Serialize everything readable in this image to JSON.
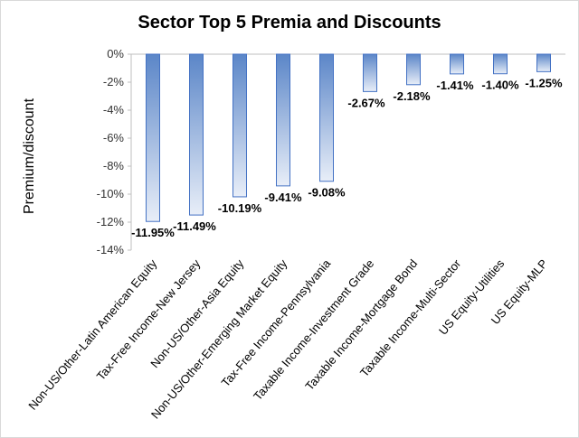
{
  "chart_data": {
    "type": "bar",
    "title": "Sector Top 5 Premia and Discounts",
    "ylabel": "Premium/discount",
    "xlabel": "",
    "categories": [
      "Non-US/Other-Latin American Equity",
      "Tax-Free Income-New Jersey",
      "Non-US/Other-Asia Equity",
      "Non-US/Other-Emerging Market Equity",
      "Tax-Free Income-Pennsylvania",
      "Taxable Income-Investment Grade",
      "Taxable Income-Mortgage Bond",
      "Taxable Income-Multi-Sector",
      "US Equity-Utilities",
      "US Equity-MLP"
    ],
    "values": [
      -11.95,
      -11.49,
      -10.19,
      -9.41,
      -9.08,
      -2.67,
      -2.18,
      -1.41,
      -1.4,
      -1.25
    ],
    "data_labels": [
      "-11.95%",
      "-11.49%",
      "-10.19%",
      "-9.41%",
      "-9.08%",
      "-2.67%",
      "-2.18%",
      "-1.41%",
      "-1.40%",
      "-1.25%"
    ],
    "ylim": [
      -14,
      0
    ],
    "yticks": [
      0,
      -2,
      -4,
      -6,
      -8,
      -10,
      -12,
      -14
    ],
    "ytick_labels": [
      "0%",
      "-2%",
      "-4%",
      "-6%",
      "-8%",
      "-10%",
      "-12%",
      "-14%"
    ],
    "grid": false,
    "legend": "none",
    "colors": {
      "bar_top": "#5b86c8",
      "bar_bottom": "#e8eef8",
      "bar_edge": "#4472c4"
    }
  }
}
